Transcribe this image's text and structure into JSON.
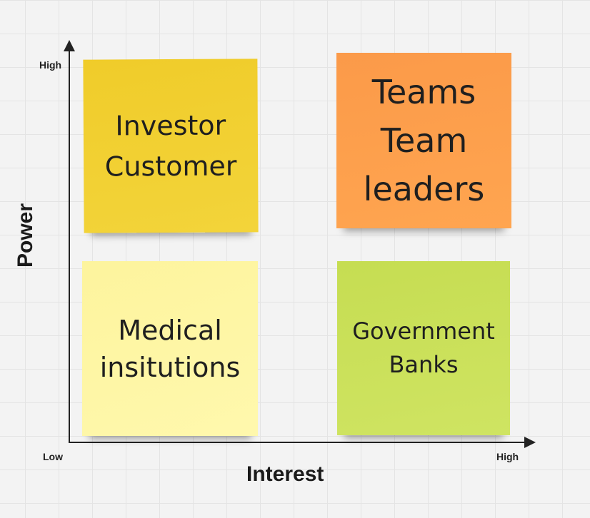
{
  "axes": {
    "y_title": "Power",
    "x_title": "Interest",
    "y_high": "High",
    "x_low": "Low",
    "x_high": "High"
  },
  "quadrants": {
    "high_power_low_interest": {
      "lines": [
        "Investor",
        "Customer"
      ],
      "color": "#f2d030"
    },
    "high_power_high_interest": {
      "lines": [
        "Teams",
        "Team",
        "leaders"
      ],
      "color": "#fd9f4c"
    },
    "low_power_low_interest": {
      "lines": [
        "Medical",
        "insitutions"
      ],
      "color": "#fef6a5"
    },
    "low_power_high_interest": {
      "lines": [
        "Government",
        "Banks"
      ],
      "color": "#cae15a"
    }
  }
}
